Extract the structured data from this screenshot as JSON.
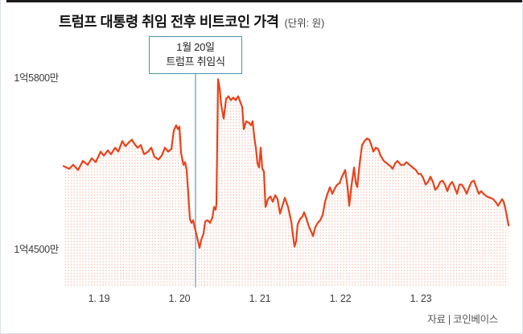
{
  "header": {
    "title": "트럼프 대통령 취임 전후 비트코인 가격",
    "unit_label": "(단위: 원)"
  },
  "annotation": {
    "line1": "1월 20일",
    "line2": "트럼프 취임식"
  },
  "source": {
    "label": "자료 | 코인베이스"
  },
  "colors": {
    "accent_top_bar": "#1c1c1c",
    "title_text": "#111111",
    "unit_text": "#444444",
    "axis_text": "#3c3c3c",
    "source_text": "#555555",
    "price_line": "#e8421a",
    "area_dot": "#f3bca7",
    "event_line": "#9cc3d5",
    "callout_border": "#4a93ad",
    "callout_text": "#222222"
  },
  "chart_data": {
    "type": "line",
    "title": "트럼프 대통령 취임 전후 비트코인 가격",
    "unit": "원",
    "value_unit": "만원",
    "x_tick_labels": [
      "1. 19",
      "1. 20",
      "1. 21",
      "1. 22",
      "1. 23"
    ],
    "y_tick_labels": [
      {
        "label": "1억5800만",
        "value": 15800
      },
      {
        "label": "1억4500만",
        "value": 14500
      }
    ],
    "ylim": [
      14200,
      15850
    ],
    "grid": false,
    "legend": "none",
    "event": {
      "day": 1.2,
      "label": [
        "1월 20일",
        "트럼프 취임식"
      ]
    },
    "points": [
      [
        -0.44,
        15120
      ],
      [
        -0.37,
        15100
      ],
      [
        -0.32,
        15130
      ],
      [
        -0.26,
        15090
      ],
      [
        -0.2,
        15160
      ],
      [
        -0.14,
        15130
      ],
      [
        -0.09,
        15180
      ],
      [
        -0.04,
        15150
      ],
      [
        0.02,
        15230
      ],
      [
        0.06,
        15200
      ],
      [
        0.11,
        15240
      ],
      [
        0.15,
        15210
      ],
      [
        0.2,
        15260
      ],
      [
        0.24,
        15230
      ],
      [
        0.29,
        15310
      ],
      [
        0.33,
        15270
      ],
      [
        0.37,
        15300
      ],
      [
        0.41,
        15320
      ],
      [
        0.44,
        15290
      ],
      [
        0.48,
        15260
      ],
      [
        0.52,
        15280
      ],
      [
        0.56,
        15210
      ],
      [
        0.61,
        15230
      ],
      [
        0.65,
        15260
      ],
      [
        0.69,
        15190
      ],
      [
        0.74,
        15170
      ],
      [
        0.78,
        15200
      ],
      [
        0.82,
        15260
      ],
      [
        0.86,
        15230
      ],
      [
        0.9,
        15250
      ],
      [
        0.93,
        15390
      ],
      [
        0.96,
        15430
      ],
      [
        0.98,
        15400
      ],
      [
        1.0,
        15420
      ],
      [
        1.02,
        15220
      ],
      [
        1.05,
        15130
      ],
      [
        1.07,
        15150
      ],
      [
        1.09,
        15090
      ],
      [
        1.11,
        14910
      ],
      [
        1.13,
        14720
      ],
      [
        1.15,
        14690
      ],
      [
        1.17,
        14710
      ],
      [
        1.2,
        14630
      ],
      [
        1.22,
        14580
      ],
      [
        1.25,
        14500
      ],
      [
        1.27,
        14560
      ],
      [
        1.3,
        14610
      ],
      [
        1.32,
        14700
      ],
      [
        1.35,
        14710
      ],
      [
        1.38,
        14690
      ],
      [
        1.41,
        14730
      ],
      [
        1.43,
        14810
      ],
      [
        1.45,
        14790
      ],
      [
        1.46,
        14830
      ],
      [
        1.48,
        15780
      ],
      [
        1.5,
        15710
      ],
      [
        1.52,
        15580
      ],
      [
        1.55,
        15480
      ],
      [
        1.58,
        15630
      ],
      [
        1.61,
        15650
      ],
      [
        1.64,
        15620
      ],
      [
        1.67,
        15640
      ],
      [
        1.7,
        15620
      ],
      [
        1.73,
        15650
      ],
      [
        1.76,
        15600
      ],
      [
        1.78,
        15570
      ],
      [
        1.8,
        15400
      ],
      [
        1.83,
        15460
      ],
      [
        1.86,
        15450
      ],
      [
        1.89,
        15430
      ],
      [
        1.91,
        15460
      ],
      [
        1.93,
        15340
      ],
      [
        1.95,
        15260
      ],
      [
        1.97,
        15140
      ],
      [
        1.99,
        15110
      ],
      [
        2.01,
        15260
      ],
      [
        2.03,
        15100
      ],
      [
        2.05,
        15080
      ],
      [
        2.07,
        14810
      ],
      [
        2.1,
        14870
      ],
      [
        2.13,
        14890
      ],
      [
        2.16,
        14850
      ],
      [
        2.19,
        14900
      ],
      [
        2.22,
        14870
      ],
      [
        2.25,
        14760
      ],
      [
        2.28,
        14820
      ],
      [
        2.31,
        14880
      ],
      [
        2.35,
        14810
      ],
      [
        2.39,
        14700
      ],
      [
        2.41,
        14600
      ],
      [
        2.43,
        14510
      ],
      [
        2.45,
        14550
      ],
      [
        2.47,
        14680
      ],
      [
        2.5,
        14720
      ],
      [
        2.53,
        14740
      ],
      [
        2.55,
        14770
      ],
      [
        2.58,
        14720
      ],
      [
        2.61,
        14660
      ],
      [
        2.64,
        14620
      ],
      [
        2.66,
        14590
      ],
      [
        2.69,
        14660
      ],
      [
        2.72,
        14690
      ],
      [
        2.75,
        14710
      ],
      [
        2.78,
        14750
      ],
      [
        2.81,
        14850
      ],
      [
        2.84,
        14910
      ],
      [
        2.87,
        14960
      ],
      [
        2.9,
        14910
      ],
      [
        2.93,
        14950
      ],
      [
        2.96,
        14980
      ],
      [
        2.99,
        14990
      ],
      [
        3.02,
        15040
      ],
      [
        3.06,
        15090
      ],
      [
        3.09,
        14960
      ],
      [
        3.11,
        14820
      ],
      [
        3.14,
        14980
      ],
      [
        3.17,
        15110
      ],
      [
        3.19,
        15000
      ],
      [
        3.21,
        14960
      ],
      [
        3.24,
        15140
      ],
      [
        3.27,
        15280
      ],
      [
        3.3,
        15310
      ],
      [
        3.33,
        15330
      ],
      [
        3.36,
        15320
      ],
      [
        3.39,
        15270
      ],
      [
        3.41,
        15230
      ],
      [
        3.44,
        15260
      ],
      [
        3.47,
        15250
      ],
      [
        3.5,
        15200
      ],
      [
        3.54,
        15160
      ],
      [
        3.58,
        15140
      ],
      [
        3.62,
        15120
      ],
      [
        3.65,
        15100
      ],
      [
        3.68,
        15140
      ],
      [
        3.71,
        15160
      ],
      [
        3.75,
        15130
      ],
      [
        3.79,
        15130
      ],
      [
        3.82,
        15150
      ],
      [
        3.86,
        15130
      ],
      [
        3.9,
        15110
      ],
      [
        3.94,
        15090
      ],
      [
        3.97,
        15060
      ],
      [
        4.0,
        15060
      ],
      [
        4.03,
        15030
      ],
      [
        4.06,
        14980
      ],
      [
        4.09,
        15000
      ],
      [
        4.12,
        15040
      ],
      [
        4.15,
        15000
      ],
      [
        4.18,
        14940
      ],
      [
        4.21,
        14960
      ],
      [
        4.24,
        15000
      ],
      [
        4.27,
        15010
      ],
      [
        4.3,
        14980
      ],
      [
        4.33,
        14930
      ],
      [
        4.36,
        14980
      ],
      [
        4.39,
        15000
      ],
      [
        4.42,
        14960
      ],
      [
        4.45,
        14910
      ],
      [
        4.48,
        14980
      ],
      [
        4.51,
        14980
      ],
      [
        4.54,
        14950
      ],
      [
        4.57,
        14910
      ],
      [
        4.6,
        14960
      ],
      [
        4.63,
        15000
      ],
      [
        4.66,
        15010
      ],
      [
        4.69,
        14960
      ],
      [
        4.72,
        14910
      ],
      [
        4.75,
        14930
      ],
      [
        4.78,
        14910
      ],
      [
        4.82,
        14890
      ],
      [
        4.86,
        14880
      ],
      [
        4.9,
        14870
      ],
      [
        4.94,
        14840
      ],
      [
        4.96,
        14820
      ],
      [
        4.99,
        14850
      ],
      [
        5.01,
        14870
      ],
      [
        5.03,
        14850
      ],
      [
        5.05,
        14800
      ],
      [
        5.07,
        14740
      ],
      [
        5.09,
        14670
      ]
    ]
  }
}
